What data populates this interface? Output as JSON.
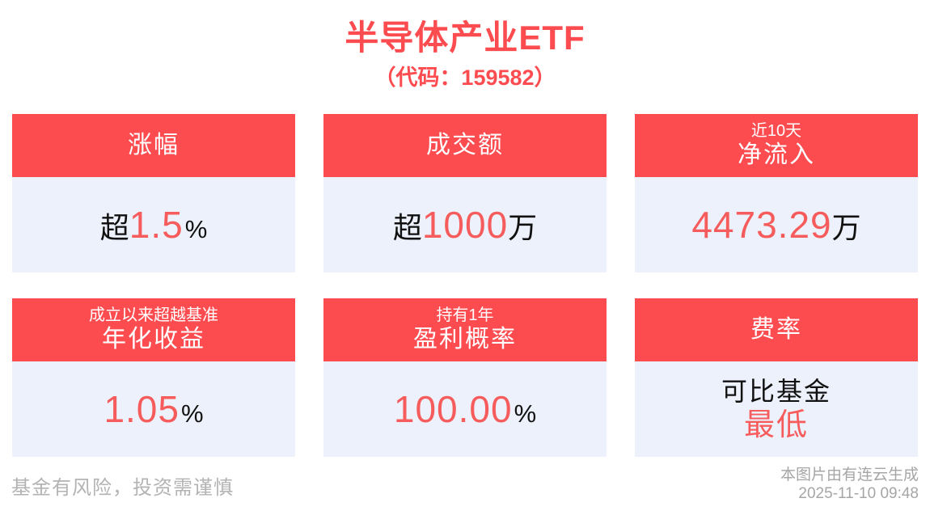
{
  "colors": {
    "header_red": "#fd4c50",
    "value_red": "#f75c5c",
    "card_body_bg": "#edf1fb",
    "text_black": "#111111",
    "footer_gray": "#b3b3b3",
    "watermark_gray": "#a6a6a6"
  },
  "header": {
    "title": "半导体产业ETF",
    "subtitle": "（代码：159582）"
  },
  "cards": [
    {
      "header_main": "涨幅",
      "prefix": "超",
      "value": "1.5",
      "suffix": "%"
    },
    {
      "header_main": "成交额",
      "prefix": "超",
      "value": "1000",
      "suffix": "万"
    },
    {
      "header_small": "近10天",
      "header_main": "净流入",
      "value": "4473.29",
      "suffix": "万"
    },
    {
      "header_small": "成立以来超越基准",
      "header_main": "年化收益",
      "value": "1.05",
      "suffix": "%"
    },
    {
      "header_small": "持有1年",
      "header_main": "盈利概率",
      "value": "100.00",
      "suffix": "%"
    },
    {
      "header_main": "费率",
      "body_line1": "可比基金",
      "body_line2": "最低"
    }
  ],
  "footer": {
    "disclaimer": "基金有风险，投资需谨慎",
    "watermark_line1": "本图片由有连云生成",
    "watermark_line2": "2025-11-10 09:48"
  }
}
